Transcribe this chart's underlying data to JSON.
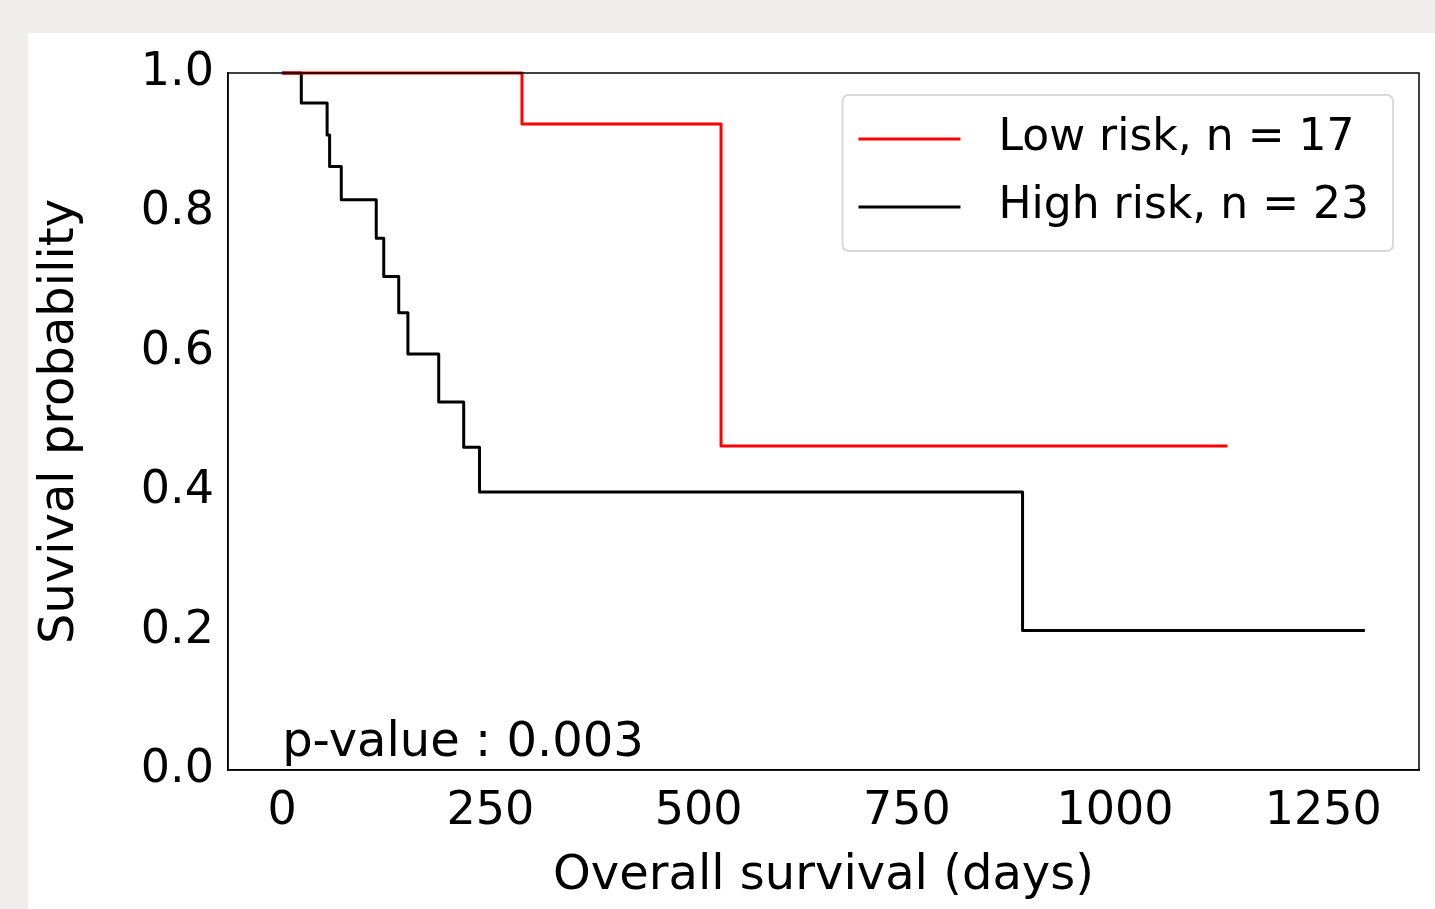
{
  "chart_data": {
    "type": "step",
    "xlabel": "Overall survival (days)",
    "ylabel": "Suvival probability",
    "xlim": [
      -65,
      1365
    ],
    "xticks": [
      0,
      250,
      500,
      750,
      1000,
      1250
    ],
    "ylim": [
      0,
      1
    ],
    "yticks": [
      {
        "value": 0,
        "label": "0.0"
      },
      0.2,
      0.4,
      0.6,
      0.8,
      {
        "value": 1,
        "label": "1.0"
      }
    ],
    "grid": false,
    "legend": "top right",
    "marker": "none",
    "line_style": "solid",
    "series": [
      {
        "name": "Low risk, n = 17",
        "color": "#ff0000",
        "x": [
          0,
          288,
          527,
          1135
        ],
        "values": [
          1,
          0.927,
          0.465,
          0.465
        ]
      },
      {
        "name": "High risk, n = 23",
        "color": "#000000",
        "x": [
          0,
          23,
          54,
          57,
          71,
          113,
          122,
          140,
          151,
          188,
          218,
          237,
          889,
          1300
        ],
        "values": [
          1,
          0.957,
          0.911,
          0.866,
          0.818,
          0.763,
          0.708,
          0.656,
          0.597,
          0.528,
          0.463,
          0.399,
          0.2,
          0.2
        ]
      }
    ],
    "annotations": [
      "p-value : 0.003"
    ]
  }
}
